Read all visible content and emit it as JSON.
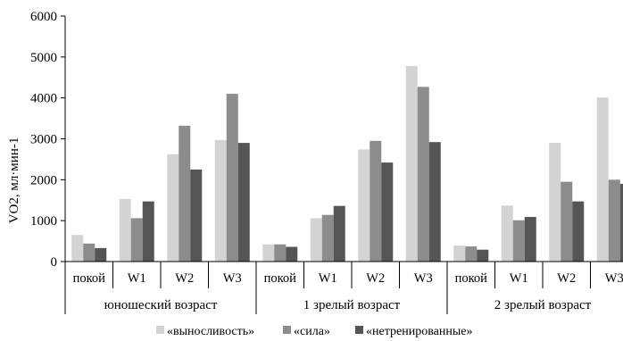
{
  "chart_data": {
    "type": "bar",
    "ylabel": "VO2, мл·мин-1",
    "ylim": [
      0,
      6000
    ],
    "yticks": [
      0,
      1000,
      2000,
      3000,
      4000,
      5000,
      6000
    ],
    "grid": false,
    "legend_position": "bottom",
    "categories": [
      "покой",
      "W1",
      "W2",
      "W3",
      "покой",
      "W1",
      "W2",
      "W3",
      "покой",
      "W1",
      "W2",
      "W3"
    ],
    "groups": [
      {
        "label": "юношеский возраст",
        "span": [
          0,
          3
        ]
      },
      {
        "label": "1 зрелый возраст",
        "span": [
          4,
          7
        ]
      },
      {
        "label": "2 зрелый возраст",
        "span": [
          8,
          11
        ]
      }
    ],
    "series": [
      {
        "name": "«выносливость»",
        "color": "#d3d3d3",
        "values": [
          650,
          1530,
          2620,
          2970,
          420,
          1060,
          2740,
          4780,
          390,
          1370,
          2900,
          4010
        ]
      },
      {
        "name": "«сила»",
        "color": "#8c8c8c",
        "values": [
          440,
          1060,
          3320,
          4100,
          420,
          1140,
          2950,
          4270,
          370,
          1010,
          1950,
          2000
        ]
      },
      {
        "name": "«нетренированные»",
        "color": "#555555",
        "values": [
          330,
          1470,
          2250,
          2900,
          360,
          1360,
          2420,
          2920,
          290,
          1090,
          1470,
          1900
        ]
      }
    ]
  }
}
